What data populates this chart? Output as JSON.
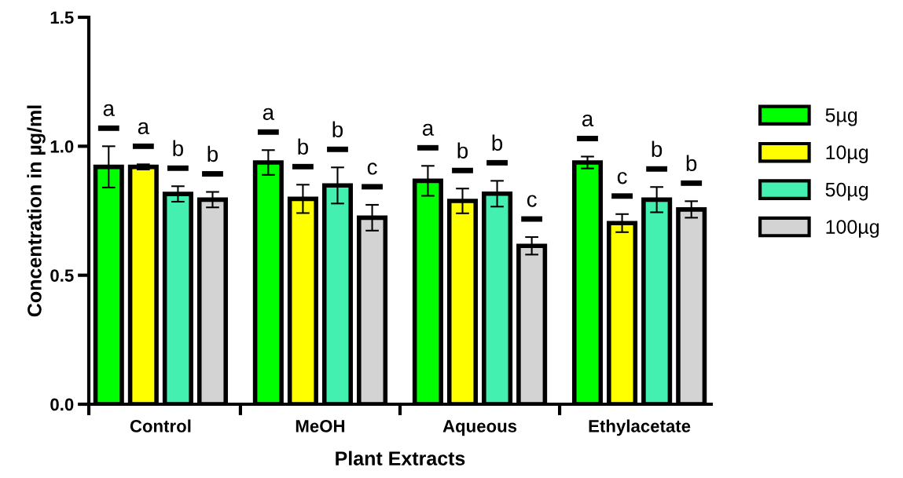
{
  "chart_data": {
    "type": "bar",
    "xlabel": "Plant Extracts",
    "ylabel": "Concentration in µg/ml",
    "categories": [
      "Control",
      "MeOH",
      "Aqueous",
      "Ethylacetate"
    ],
    "series": [
      {
        "name": "5µg",
        "color": "#00ff00",
        "values": [
          0.92,
          0.937,
          0.866,
          0.937
        ],
        "errors": [
          0.08,
          0.048,
          0.058,
          0.023
        ],
        "value_labels": [
          "a",
          "a",
          "a",
          "a"
        ]
      },
      {
        "name": "10µg",
        "color": "#ffff00",
        "values": [
          0.92,
          0.796,
          0.788,
          0.702
        ],
        "errors": [
          0.01,
          0.055,
          0.048,
          0.035
        ],
        "value_labels": [
          "a",
          "b",
          "b",
          "c"
        ]
      },
      {
        "name": "50µg",
        "color": "#44f0b0",
        "values": [
          0.815,
          0.848,
          0.816,
          0.793
        ],
        "errors": [
          0.03,
          0.07,
          0.05,
          0.049
        ],
        "value_labels": [
          "b",
          "b",
          "b",
          "b"
        ]
      },
      {
        "name": "100µg",
        "color": "#d3d3d3",
        "values": [
          0.793,
          0.723,
          0.614,
          0.755
        ],
        "errors": [
          0.03,
          0.05,
          0.034,
          0.032
        ],
        "value_labels": [
          "b",
          "c",
          "c",
          "b"
        ]
      }
    ],
    "ylim": [
      0,
      1.5
    ],
    "yticks": [
      {
        "value": 0,
        "label": "0.0"
      },
      {
        "value": 0.5,
        "label": "0.5"
      },
      {
        "value": 1.0,
        "label": "1.0"
      },
      {
        "value": 1.5,
        "label": "1.5"
      }
    ],
    "grid": false,
    "legend": "right"
  }
}
